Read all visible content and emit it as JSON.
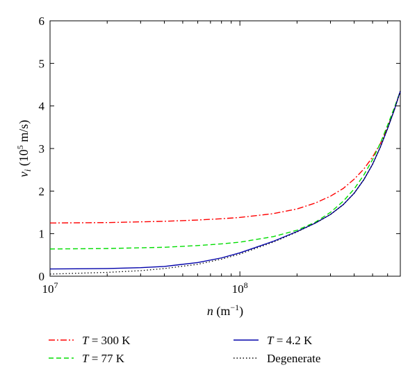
{
  "chart_data": {
    "type": "line",
    "xscale": "log",
    "xlim": [
      10000000,
      700000000
    ],
    "ylim": [
      0,
      6
    ],
    "xlabel": {
      "var": "n",
      "unit": "(m",
      "exp": "−1",
      "close": ")"
    },
    "ylabel": {
      "var": "v",
      "sub": "i",
      "pre": " (10",
      "exp": "5",
      "unit": " m/s)"
    },
    "xticks": [
      {
        "value": 10000000,
        "base": "10",
        "exp": "7"
      },
      {
        "value": 100000000,
        "base": "10",
        "exp": "8"
      }
    ],
    "yticks": [
      0,
      1,
      2,
      3,
      4,
      5,
      6
    ],
    "grid": false,
    "legend_position": "below",
    "series": [
      {
        "key": "t300",
        "label": {
          "var": "T",
          "rest": " = 300 K"
        },
        "color": "#ff0000",
        "dash": "9,3,2,3",
        "x": [
          10000000,
          20000000,
          40000000,
          60000000,
          80000000,
          100000000,
          150000000,
          200000000,
          250000000,
          300000000,
          350000000,
          400000000,
          450000000,
          500000000,
          550000000,
          600000000,
          650000000,
          700000000
        ],
        "y": [
          1.25,
          1.26,
          1.29,
          1.32,
          1.35,
          1.38,
          1.47,
          1.58,
          1.72,
          1.88,
          2.06,
          2.28,
          2.52,
          2.8,
          3.12,
          3.5,
          3.9,
          4.35
        ]
      },
      {
        "key": "t77",
        "label": {
          "var": "T",
          "rest": " = 77 K"
        },
        "color": "#00dd00",
        "dash": "7,4",
        "x": [
          10000000,
          20000000,
          40000000,
          60000000,
          80000000,
          100000000,
          150000000,
          200000000,
          250000000,
          300000000,
          350000000,
          400000000,
          450000000,
          500000000,
          550000000,
          600000000,
          650000000,
          700000000
        ],
        "y": [
          0.64,
          0.65,
          0.68,
          0.72,
          0.76,
          0.8,
          0.93,
          1.08,
          1.27,
          1.5,
          1.76,
          2.05,
          2.38,
          2.74,
          3.13,
          3.55,
          3.95,
          4.35
        ]
      },
      {
        "key": "t42",
        "label": {
          "var": "T",
          "rest": " = 4.2 K"
        },
        "color": "#0000aa",
        "dash": "",
        "x": [
          10000000,
          20000000,
          30000000,
          40000000,
          60000000,
          80000000,
          100000000,
          150000000,
          200000000,
          250000000,
          300000000,
          350000000,
          400000000,
          450000000,
          500000000,
          550000000,
          600000000,
          650000000,
          700000000
        ],
        "y": [
          0.17,
          0.18,
          0.2,
          0.23,
          0.32,
          0.43,
          0.55,
          0.82,
          1.05,
          1.25,
          1.45,
          1.68,
          1.95,
          2.27,
          2.63,
          3.04,
          3.47,
          3.9,
          4.35
        ]
      },
      {
        "key": "deg",
        "label": {
          "var": "",
          "rest": "Degenerate"
        },
        "color": "#000000",
        "dash": "1.5,3",
        "x": [
          10000000,
          20000000,
          30000000,
          40000000,
          60000000,
          80000000,
          100000000,
          150000000,
          200000000,
          250000000,
          300000000,
          350000000,
          400000000,
          450000000,
          500000000,
          550000000,
          600000000,
          650000000,
          700000000
        ],
        "y": [
          0.05,
          0.09,
          0.13,
          0.18,
          0.28,
          0.4,
          0.52,
          0.8,
          1.04,
          1.25,
          1.45,
          1.68,
          1.95,
          2.27,
          2.63,
          3.04,
          3.47,
          3.9,
          4.35
        ]
      }
    ]
  }
}
